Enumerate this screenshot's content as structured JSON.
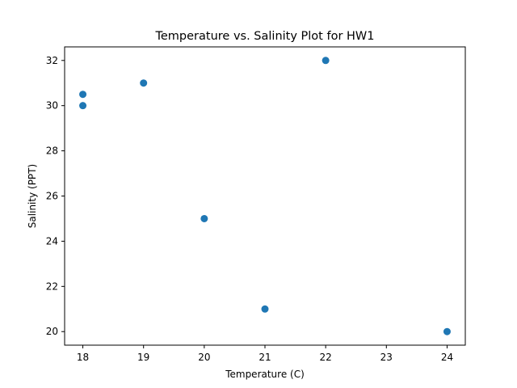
{
  "chart_data": {
    "type": "scatter",
    "title": "Temperature vs. Salinity Plot for HW1",
    "xlabel": "Temperature (C)",
    "ylabel": "Salinity (PPT)",
    "xlim": [
      17.7,
      24.3
    ],
    "ylim": [
      19.4,
      32.6
    ],
    "xticks": [
      18,
      19,
      20,
      21,
      22,
      23,
      24
    ],
    "yticks": [
      20,
      22,
      24,
      26,
      28,
      30,
      32
    ],
    "grid": false,
    "legend": "none",
    "point_color": "#1f77b4",
    "series": [
      {
        "x": [
          18,
          18,
          19,
          20,
          21,
          22,
          24
        ],
        "y": [
          30.5,
          30,
          31,
          25,
          21,
          32,
          20
        ]
      }
    ]
  }
}
